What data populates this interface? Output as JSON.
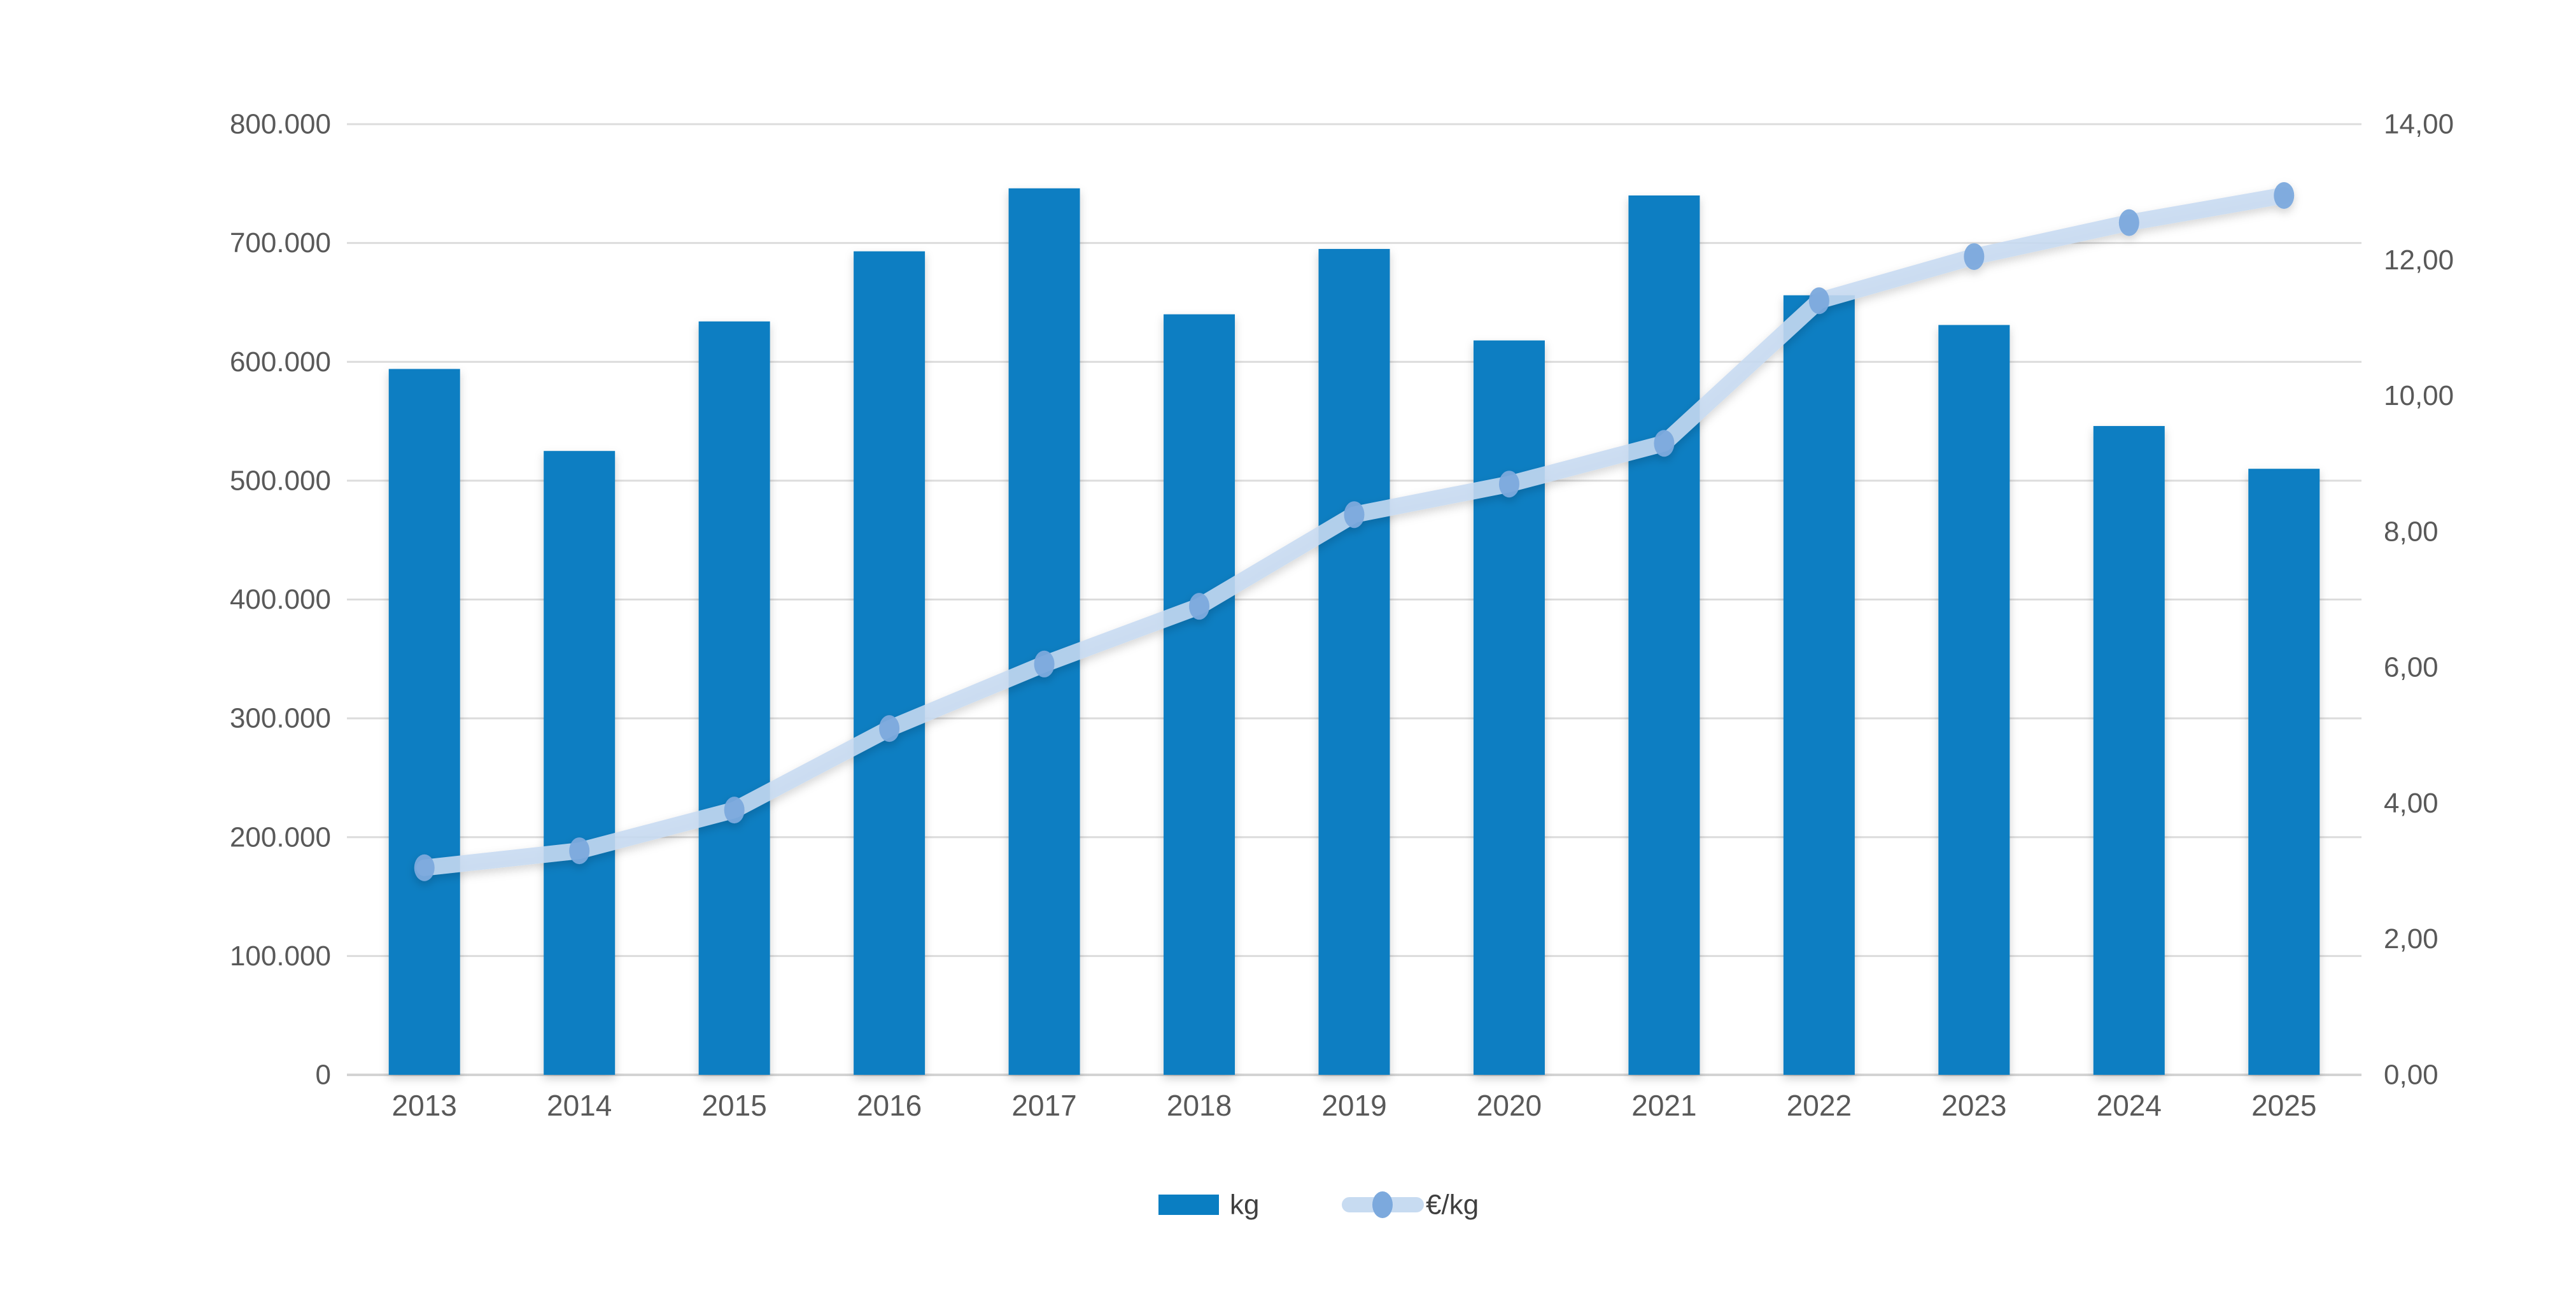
{
  "chart_data": {
    "type": "combo-bar-line",
    "title": "",
    "categories": [
      "2013",
      "2014",
      "2015",
      "2016",
      "2017",
      "2018",
      "2019",
      "2020",
      "2021",
      "2022",
      "2023",
      "2024",
      "2025"
    ],
    "series": [
      {
        "name": "kg",
        "type": "bar",
        "axis": "left",
        "values": [
          594000,
          525000,
          634000,
          693000,
          746000,
          640000,
          695000,
          618000,
          740000,
          656000,
          631000,
          546000,
          510000
        ],
        "color": "#0A7EC2"
      },
      {
        "name": "€/kg",
        "type": "line",
        "axis": "right",
        "values": [
          3.05,
          3.3,
          3.9,
          5.1,
          6.05,
          6.9,
          8.25,
          8.7,
          9.3,
          11.4,
          12.05,
          12.55,
          12.95
        ],
        "line_color": "#C7DBF1",
        "marker_color": "#7CA9DD"
      }
    ],
    "left_axis": {
      "min": 0,
      "max": 800000,
      "step": 100000,
      "tick_labels": [
        "0",
        "100.000",
        "200.000",
        "300.000",
        "400.000",
        "500.000",
        "600.000",
        "700.000",
        "800.000"
      ]
    },
    "right_axis": {
      "min": 0,
      "max": 14,
      "step": 2,
      "tick_labels": [
        "0,00",
        "2,00",
        "4,00",
        "6,00",
        "8,00",
        "10,00",
        "12,00",
        "14,00"
      ]
    },
    "grid": true,
    "grid_lines": "horizontal",
    "legend_position": "bottom",
    "legend": [
      {
        "label": "kg",
        "swatch": "bar-swatch"
      },
      {
        "label": "€/kg",
        "swatch": "line-dot-swatch"
      }
    ]
  },
  "colors": {
    "background": "#ffffff",
    "bar": "#0A7EC2",
    "line": "#C7DBF1",
    "marker": "#7CA9DD",
    "gridline": "#DCDCDC",
    "baseline": "#D3D3D3",
    "axis_text": "#595959",
    "legend_text": "#3F3F3F"
  }
}
